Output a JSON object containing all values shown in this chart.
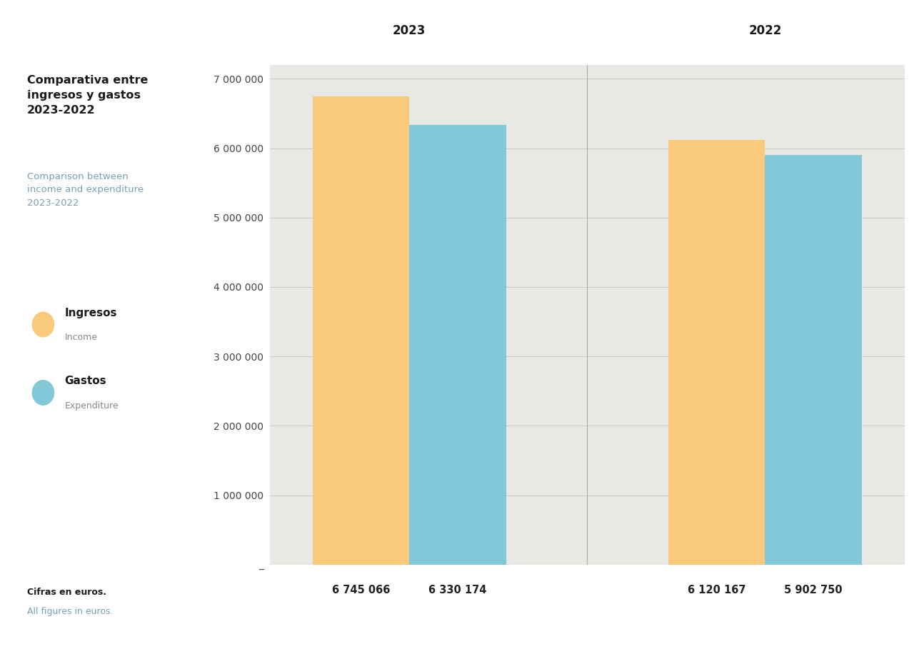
{
  "title_es": "Comparativa entre\ningresos y gastos\n2023-2022",
  "title_en": "Comparison between\nincome and expenditure\n2023-2022",
  "legend_income_es": "Ingresos",
  "legend_income_en": "Income",
  "legend_expense_es": "Gastos",
  "legend_expense_en": "Expenditure",
  "footnote_es": "Cifras en euros.",
  "footnote_en": "All figures in euros.",
  "years": [
    "2023",
    "2022"
  ],
  "income": [
    6745066,
    6120167
  ],
  "expenditure": [
    6330174,
    5902750
  ],
  "income_labels": [
    "6 745 066",
    "6 120 167"
  ],
  "expenditure_labels": [
    "6 330 174",
    "5 902 750"
  ],
  "income_color": "#F9C97C",
  "expenditure_color": "#82C8D8",
  "bg_color": "#E8E8E5",
  "white_color": "#FFFFFF",
  "text_color_dark": "#1a1a1a",
  "text_color_blue": "#7A9EB5",
  "text_color_gray": "#888888",
  "grid_color": "#c8c8c8",
  "divider_color": "#aaaaaa",
  "ylim": [
    0,
    7200000
  ],
  "yticks": [
    0,
    1000000,
    2000000,
    3000000,
    4000000,
    5000000,
    6000000,
    7000000
  ],
  "ytick_labels": [
    "_",
    "1 000 000",
    "2 000 000",
    "3 000 000",
    "4 000 000",
    "5 000 000",
    "6 000 000",
    "7 000 000"
  ],
  "bar_width": 0.38,
  "group_centers": [
    0.5,
    1.9
  ],
  "xlim": [
    -0.05,
    2.45
  ]
}
